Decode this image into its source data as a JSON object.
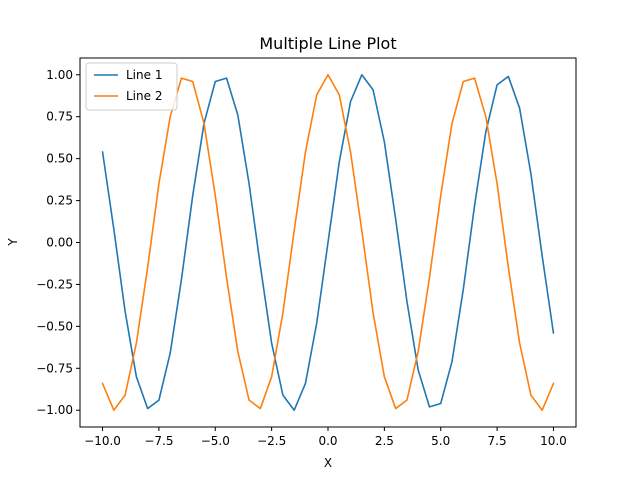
{
  "chart_data": {
    "type": "line",
    "title": "Multiple Line Plot",
    "xlabel": "X",
    "ylabel": "Y",
    "xlim": [
      -10.0,
      10.0
    ],
    "ylim": [
      -1.0,
      1.0
    ],
    "xticks": [
      -10.0,
      -7.5,
      -5.0,
      -2.5,
      0.0,
      2.5,
      5.0,
      7.5,
      10.0
    ],
    "xtick_labels": [
      "−10.0",
      "−7.5",
      "−5.0",
      "−2.5",
      "0.0",
      "2.5",
      "5.0",
      "7.5",
      "10.0"
    ],
    "yticks": [
      -1.0,
      -0.75,
      -0.5,
      -0.25,
      0.0,
      0.25,
      0.5,
      0.75,
      1.0
    ],
    "ytick_labels": [
      "−1.00",
      "−0.75",
      "−0.50",
      "−0.25",
      "0.00",
      "0.25",
      "0.50",
      "0.75",
      "1.00"
    ],
    "grid": false,
    "legend_position": "top-left",
    "series": [
      {
        "name": "Line 1",
        "color": "#1f77b4",
        "x": [
          -10.0,
          -9.5,
          -9.0,
          -8.5,
          -8.0,
          -7.5,
          -7.0,
          -6.5,
          -6.0,
          -5.5,
          -5.0,
          -4.5,
          -4.0,
          -3.5,
          -3.0,
          -2.5,
          -2.0,
          -1.5,
          -1.0,
          -0.5,
          0.0,
          0.5,
          1.0,
          1.5,
          2.0,
          2.5,
          3.0,
          3.5,
          4.0,
          4.5,
          5.0,
          5.5,
          6.0,
          6.5,
          7.0,
          7.5,
          8.0,
          8.5,
          9.0,
          9.5,
          10.0
        ],
        "y": [
          0.54,
          0.08,
          -0.41,
          -0.8,
          -0.99,
          -0.94,
          -0.66,
          -0.22,
          0.28,
          0.71,
          0.96,
          0.98,
          0.76,
          0.35,
          -0.14,
          -0.6,
          -0.91,
          -1.0,
          -0.84,
          -0.48,
          0.0,
          0.48,
          0.84,
          1.0,
          0.91,
          0.6,
          0.14,
          -0.35,
          -0.76,
          -0.98,
          -0.96,
          -0.71,
          -0.28,
          0.22,
          0.66,
          0.94,
          0.99,
          0.8,
          0.41,
          -0.08,
          -0.54
        ]
      },
      {
        "name": "Line 2",
        "color": "#ff7f0e",
        "x": [
          -10.0,
          -9.5,
          -9.0,
          -8.5,
          -8.0,
          -7.5,
          -7.0,
          -6.5,
          -6.0,
          -5.5,
          -5.0,
          -4.5,
          -4.0,
          -3.5,
          -3.0,
          -2.5,
          -2.0,
          -1.5,
          -1.0,
          -0.5,
          0.0,
          0.5,
          1.0,
          1.5,
          2.0,
          2.5,
          3.0,
          3.5,
          4.0,
          4.5,
          5.0,
          5.5,
          6.0,
          6.5,
          7.0,
          7.5,
          8.0,
          8.5,
          9.0,
          9.5,
          10.0
        ],
        "y": [
          -0.84,
          -1.0,
          -0.91,
          -0.6,
          -0.15,
          0.35,
          0.75,
          0.98,
          0.96,
          0.71,
          0.28,
          -0.21,
          -0.65,
          -0.94,
          -0.99,
          -0.8,
          -0.42,
          0.07,
          0.54,
          0.88,
          1.0,
          0.88,
          0.54,
          0.07,
          -0.42,
          -0.8,
          -0.99,
          -0.94,
          -0.65,
          -0.21,
          0.28,
          0.71,
          0.96,
          0.98,
          0.75,
          0.35,
          -0.15,
          -0.6,
          -0.91,
          -1.0,
          -0.84
        ]
      }
    ]
  }
}
